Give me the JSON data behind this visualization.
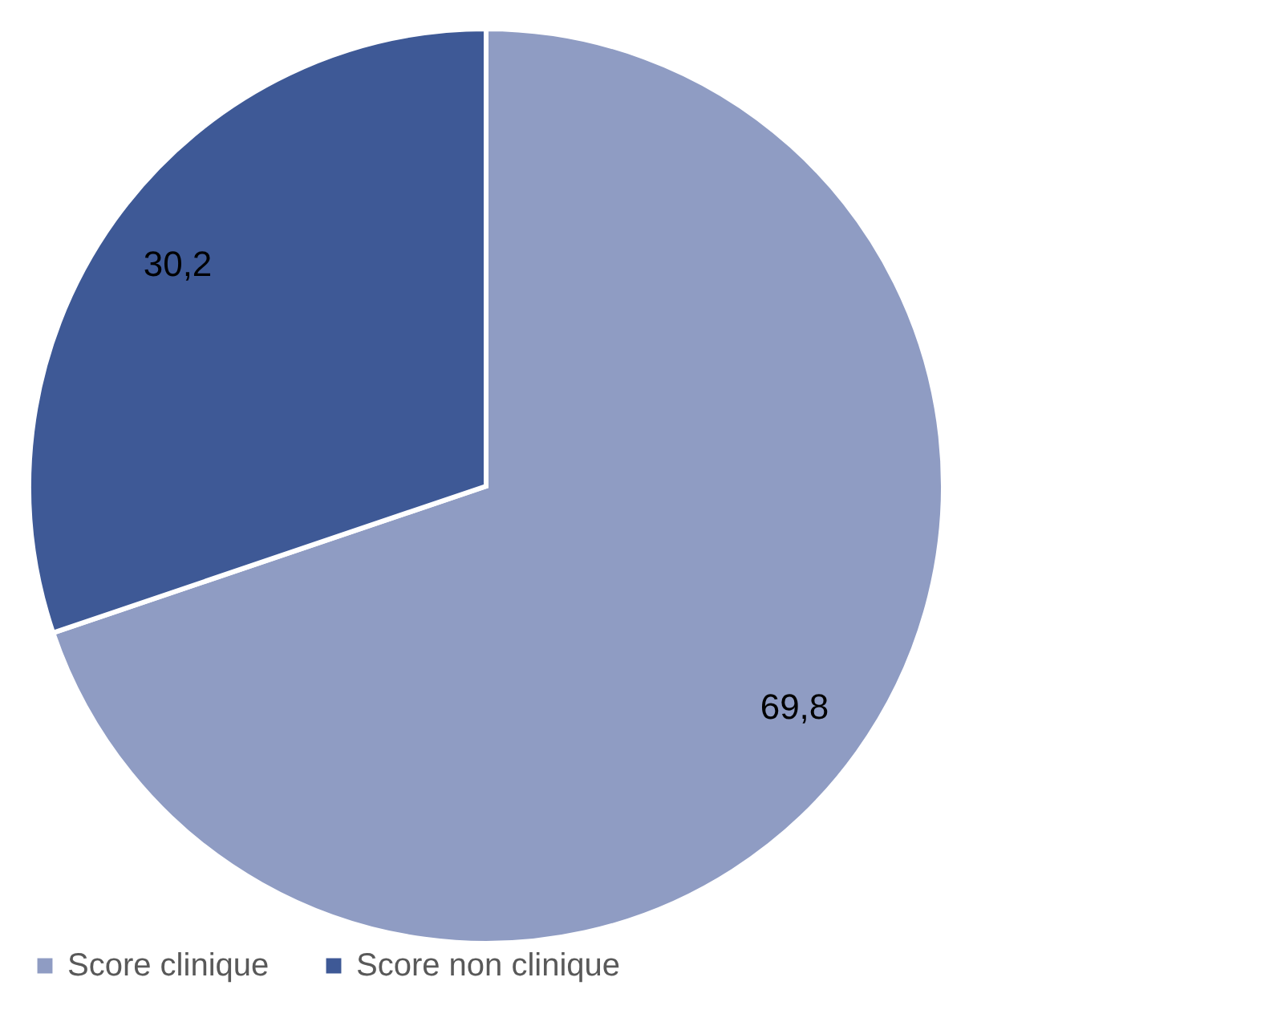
{
  "chart_data": {
    "type": "pie",
    "categories": [
      "Score clinique",
      "Score non clinique"
    ],
    "values": [
      69.8,
      30.2
    ],
    "colors": [
      "#8f9cc3",
      "#3e5996"
    ],
    "value_labels": [
      "69,8",
      "30,2"
    ],
    "legend": "bottom"
  }
}
